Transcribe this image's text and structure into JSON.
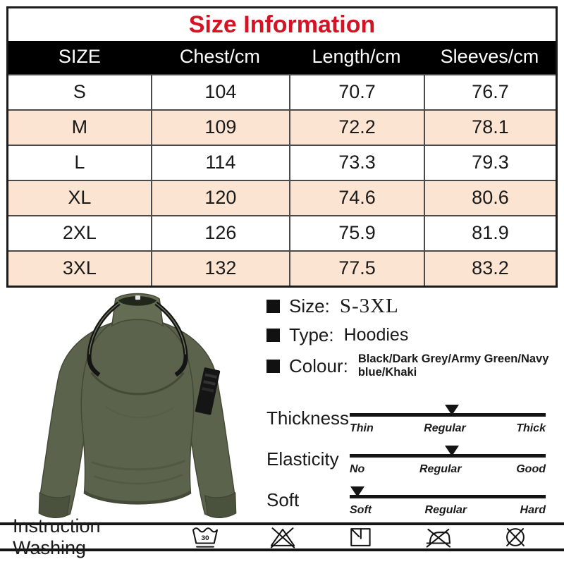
{
  "title": "Size Information",
  "colors": {
    "title_red": "#d41425",
    "zebra_peach": "#fbe4d1",
    "header_bg": "#000000",
    "garment_green": "#5b634c"
  },
  "table": {
    "columns": [
      "SIZE",
      "Chest/cm",
      "Length/cm",
      "Sleeves/cm"
    ],
    "rows": [
      {
        "size": "S",
        "chest": "104",
        "length": "70.7",
        "sleeves": "76.7"
      },
      {
        "size": "M",
        "chest": "109",
        "length": "72.2",
        "sleeves": "78.1"
      },
      {
        "size": "L",
        "chest": "114",
        "length": "73.3",
        "sleeves": "79.3"
      },
      {
        "size": "XL",
        "chest": "120",
        "length": "74.6",
        "sleeves": "80.6"
      },
      {
        "size": "2XL",
        "chest": "126",
        "length": "75.9",
        "sleeves": "81.9"
      },
      {
        "size": "3XL",
        "chest": "132",
        "length": "77.5",
        "sleeves": "83.2"
      }
    ]
  },
  "product": {
    "image_alt": "army-green-fleece-pullover",
    "specs": [
      {
        "label": "Size:",
        "value": "S-3XL"
      },
      {
        "label": "Type:",
        "value": "Hoodies"
      },
      {
        "label": "Colour:",
        "value": "Black/Dark Grey/Army Green/Navy blue/Khaki"
      }
    ]
  },
  "sliders": [
    {
      "label": "Thickness",
      "ticks": [
        "Thin",
        "Regular",
        "Thick"
      ],
      "marker_pct": 52
    },
    {
      "label": "Elasticity",
      "ticks": [
        "No",
        "Regular",
        "Good"
      ],
      "marker_pct": 52
    },
    {
      "label": "Soft",
      "ticks": [
        "Soft",
        "Regular",
        "Hard"
      ],
      "marker_pct": 4
    }
  ],
  "washing": {
    "label": "Instruction Washing",
    "icons": [
      "wash-30-icon",
      "do-not-bleach-icon",
      "dry-in-shade-icon",
      "do-not-iron-icon",
      "do-not-dry-clean-icon"
    ]
  }
}
